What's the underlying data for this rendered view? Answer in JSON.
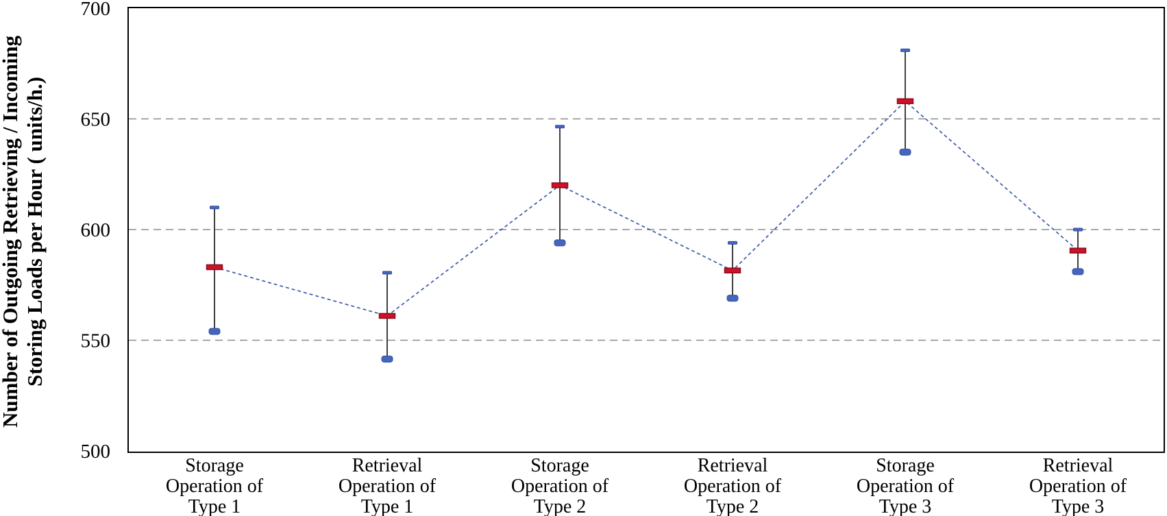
{
  "chart_data": {
    "type": "interval",
    "title": "",
    "ylabel_lines": [
      "Number of Outgoing Retrieving / Incoming",
      "Storing Loads per Hour ( units/h.)"
    ],
    "ylim": [
      500,
      700
    ],
    "yticks": [
      700,
      650,
      600,
      550,
      500
    ],
    "gridline_values": [
      650,
      600,
      550
    ],
    "grid": "horizontal-dashed",
    "legend": "none",
    "categories": [
      {
        "lines": [
          "Storage",
          "Operation of",
          "Type 1"
        ]
      },
      {
        "lines": [
          "Retrieval",
          "Operation of",
          "Type 1"
        ]
      },
      {
        "lines": [
          "Storage",
          "Operation of",
          "Type 2"
        ]
      },
      {
        "lines": [
          "Retrieval",
          "Operation of",
          "Type 2"
        ]
      },
      {
        "lines": [
          "Storage",
          "Operation of",
          "Type 3"
        ]
      },
      {
        "lines": [
          "Retrieval",
          "Operation of",
          "Type 3"
        ]
      }
    ],
    "series": [
      {
        "name": "mean-with-interval",
        "means": [
          583,
          561,
          620,
          581.5,
          658,
          590.5
        ],
        "upper": [
          610,
          580.5,
          646.5,
          594,
          681,
          600
        ],
        "lower": [
          554,
          541.5,
          594,
          569,
          635,
          581
        ]
      }
    ],
    "connect_means": true,
    "colors": {
      "mean_fill": "#CE1126",
      "mean_stroke": "#8B0E1E",
      "cap_fill": "#4565BE",
      "cap_stroke": "#32509E",
      "interval_line": "#3F3F3F",
      "connector": "#3B5BA8",
      "gridline": "#8C8C8C",
      "frame": "#000000",
      "text": "#000000",
      "plot_bg": "#FFFFFF"
    }
  }
}
